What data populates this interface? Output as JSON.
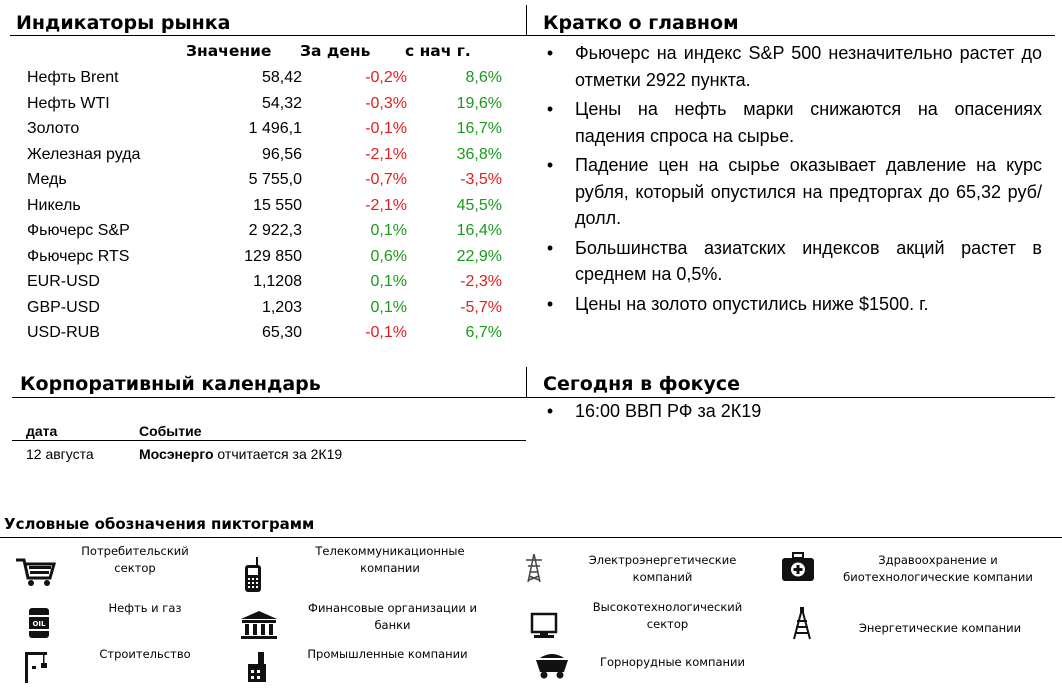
{
  "market": {
    "title": "Индикаторы рынка",
    "columns": [
      "Значение",
      "За день",
      "с нач г."
    ],
    "rows": [
      {
        "name": "Нефть Brent",
        "value": "58,42",
        "day": "-0,2%",
        "ytd": "8,6%",
        "day_color": "#e31c1c",
        "ytd_color": "#1a9a1a"
      },
      {
        "name": "Нефть WTI",
        "value": "54,32",
        "day": "-0,3%",
        "ytd": "19,6%",
        "day_color": "#e31c1c",
        "ytd_color": "#1a9a1a"
      },
      {
        "name": "Золото",
        "value": "1 496,1",
        "day": "-0,1%",
        "ytd": "16,7%",
        "day_color": "#e31c1c",
        "ytd_color": "#1a9a1a"
      },
      {
        "name": "Железная руда",
        "value": "96,56",
        "day": "-2,1%",
        "ytd": "36,8%",
        "day_color": "#e31c1c",
        "ytd_color": "#1a9a1a"
      },
      {
        "name": "Медь",
        "value": "5 755,0",
        "day": "-0,7%",
        "ytd": "-3,5%",
        "day_color": "#e31c1c",
        "ytd_color": "#e31c1c"
      },
      {
        "name": "Никель",
        "value": "15 550",
        "day": "-2,1%",
        "ytd": "45,5%",
        "day_color": "#e31c1c",
        "ytd_color": "#1a9a1a"
      },
      {
        "name": "Фьючерс S&P",
        "value": "2 922,3",
        "day": "0,1%",
        "ytd": "16,4%",
        "day_color": "#1a9a1a",
        "ytd_color": "#1a9a1a"
      },
      {
        "name": "Фьючерс RTS",
        "value": "129 850",
        "day": "0,6%",
        "ytd": "22,9%",
        "day_color": "#1a9a1a",
        "ytd_color": "#1a9a1a"
      },
      {
        "name": "EUR-USD",
        "value": "1,1208",
        "day": "0,1%",
        "ytd": "-2,3%",
        "day_color": "#1a9a1a",
        "ytd_color": "#e31c1c"
      },
      {
        "name": "GBP-USD",
        "value": "1,203",
        "day": "0,1%",
        "ytd": "-5,7%",
        "day_color": "#1a9a1a",
        "ytd_color": "#e31c1c"
      },
      {
        "name": "USD-RUB",
        "value": "65,30",
        "day": "-0,1%",
        "ytd": "6,7%",
        "day_color": "#e31c1c",
        "ytd_color": "#1a9a1a"
      }
    ]
  },
  "summary": {
    "title": "Кратко о главном",
    "bullets": [
      "Фьючерс на индекс S&P 500 незначительно растет до отметки 2922 пункта.",
      "Цены на нефть марки снижаются на опасениях падения спроса на сырье.",
      "Падение цен на сырье оказывает давление на курс рубля, который опустился на предторгах до 65,32 руб/долл.",
      "Большинства азиатских индексов акций растет в среднем на 0,5%.",
      "Цены на золото опустились ниже $1500. г."
    ]
  },
  "calendar": {
    "title": "Корпоративный календарь",
    "col_date": "дата",
    "col_event": "Событие",
    "rows": [
      {
        "date": "12 августа",
        "company": "Мосэнерго",
        "event": " отчитается за 2К19"
      }
    ]
  },
  "focus": {
    "title": "Сегодня в фокусе",
    "bullets": [
      "16:00 ВВП РФ за 2К19"
    ]
  },
  "legend": {
    "title": "Условные обозначения пиктограмм",
    "items": {
      "consumer": "Потребительский сектор",
      "telecom": "Телекоммуникационные компании",
      "electric": "Электроэнергетические компаний",
      "health": "Здравоохранение и биотехнологические компании",
      "oil": "Нефть и газ",
      "finance": "Финансовые организации и банки",
      "hightech": "Высокотехнологический сектор",
      "energy": "Энергетические компании",
      "construction": "Строительство",
      "industrial": "Промышленные компании",
      "mining": "Горнорудные компании"
    }
  },
  "colors": {
    "negative": "#e31c1c",
    "positive": "#1a9a1a"
  }
}
